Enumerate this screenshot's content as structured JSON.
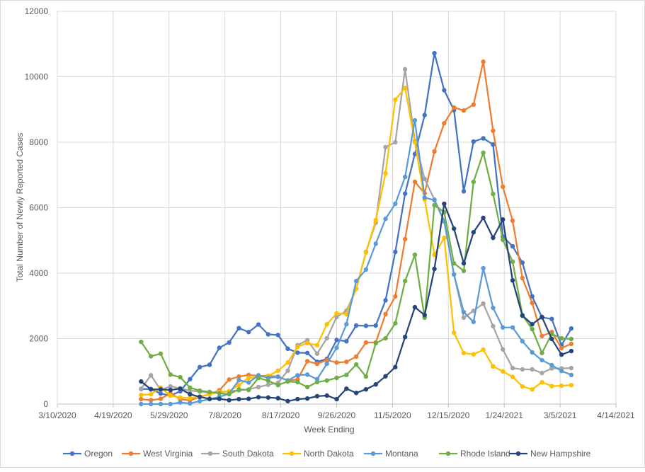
{
  "chart_data": {
    "type": "line",
    "title": "",
    "xlabel": "Week Ending",
    "ylabel": "Total Number of Newly Reported Cases",
    "ylim": [
      0,
      12000
    ],
    "yticks": [
      "0",
      "2000",
      "4000",
      "6000",
      "8000",
      "10000",
      "12000"
    ],
    "xlim": [
      "3/10/2020",
      "4/14/2021"
    ],
    "xticks": [
      "3/10/2020",
      "4/19/2020",
      "5/29/2020",
      "7/8/2020",
      "8/17/2020",
      "9/26/2020",
      "11/5/2020",
      "12/15/2020",
      "1/24/2021",
      "3/5/2021",
      "4/14/2021"
    ],
    "grid": true,
    "legend_position": "bottom",
    "x": [
      "5/9/2020",
      "5/16/2020",
      "5/23/2020",
      "5/30/2020",
      "6/6/2020",
      "6/13/2020",
      "6/20/2020",
      "6/27/2020",
      "7/4/2020",
      "7/11/2020",
      "7/18/2020",
      "7/25/2020",
      "8/1/2020",
      "8/8/2020",
      "8/15/2020",
      "8/22/2020",
      "8/29/2020",
      "9/5/2020",
      "9/12/2020",
      "9/19/2020",
      "9/26/2020",
      "10/3/2020",
      "10/10/2020",
      "10/17/2020",
      "10/24/2020",
      "10/31/2020",
      "11/7/2020",
      "11/14/2020",
      "11/21/2020",
      "11/28/2020",
      "12/5/2020",
      "12/12/2020",
      "12/19/2020",
      "12/26/2020",
      "1/2/2021",
      "1/9/2021",
      "1/16/2021",
      "1/23/2021",
      "1/30/2021",
      "2/6/2021",
      "2/13/2021",
      "2/20/2021",
      "2/27/2021",
      "3/6/2021",
      "3/13/2021"
    ],
    "series": [
      {
        "name": "Oregon",
        "color": "#4472C4",
        "values": [
          460,
          460,
          320,
          260,
          390,
          760,
          1130,
          1200,
          1720,
          1880,
          2320,
          2200,
          2430,
          2130,
          2110,
          1690,
          1570,
          1560,
          1290,
          1380,
          1960,
          1920,
          2400,
          2390,
          2400,
          3170,
          4650,
          6430,
          7640,
          8830,
          10720,
          9590,
          8980,
          6500,
          8020,
          8120,
          7930,
          5120,
          4820,
          4320,
          3290,
          2650,
          2600,
          1800,
          2310
        ]
      },
      {
        "name": "West Virginia",
        "color": "#ED7D31",
        "values": [
          150,
          120,
          160,
          330,
          150,
          110,
          220,
          300,
          420,
          750,
          840,
          890,
          860,
          860,
          840,
          720,
          750,
          1310,
          1230,
          1340,
          1270,
          1290,
          1450,
          1880,
          1880,
          2750,
          3290,
          5040,
          6790,
          6440,
          7720,
          8580,
          9060,
          8970,
          9150,
          10460,
          8350,
          6640,
          5600,
          3850,
          3090,
          2080,
          2200,
          1710,
          1840
        ]
      },
      {
        "name": "South Dakota",
        "color": "#A5A5A5",
        "values": [
          470,
          880,
          430,
          540,
          480,
          410,
          380,
          340,
          360,
          390,
          420,
          450,
          520,
          590,
          650,
          1020,
          1800,
          1950,
          1540,
          2010,
          2660,
          2850,
          3520,
          4650,
          5540,
          7850,
          8000,
          10230,
          8040,
          6880,
          6250,
          5600,
          3960,
          2640,
          2850,
          3070,
          2380,
          1670,
          1100,
          1060,
          1060,
          950,
          1090,
          1090,
          1100
        ]
      },
      {
        "name": "North Dakota",
        "color": "#FFC000",
        "values": [
          280,
          300,
          500,
          260,
          200,
          180,
          230,
          300,
          370,
          390,
          580,
          800,
          820,
          860,
          1020,
          1270,
          1750,
          1860,
          1800,
          2440,
          2770,
          2750,
          3520,
          4630,
          5620,
          7050,
          9300,
          9660,
          8000,
          6250,
          4560,
          5080,
          2180,
          1560,
          1520,
          1660,
          1150,
          1000,
          830,
          540,
          450,
          670,
          550,
          560,
          580
        ]
      },
      {
        "name": "Montana",
        "color": "#5B9BD5",
        "values": [
          0,
          0,
          0,
          0,
          50,
          20,
          90,
          150,
          220,
          320,
          730,
          660,
          880,
          800,
          830,
          720,
          880,
          900,
          760,
          1230,
          1720,
          2440,
          3760,
          4110,
          4900,
          5660,
          6120,
          6940,
          8670,
          6310,
          6230,
          5580,
          3960,
          2810,
          2510,
          4150,
          2940,
          2340,
          2340,
          1920,
          1580,
          1340,
          1190,
          1010,
          890
        ]
      },
      {
        "name": "Rhode Island",
        "color": "#70AD47",
        "values": [
          1900,
          1460,
          1540,
          900,
          820,
          500,
          410,
          370,
          330,
          300,
          450,
          430,
          800,
          710,
          580,
          690,
          670,
          520,
          670,
          720,
          800,
          890,
          1210,
          840,
          1860,
          2010,
          2470,
          3760,
          4560,
          2640,
          6080,
          5860,
          4300,
          4070,
          6790,
          7680,
          6420,
          5020,
          4350,
          2720,
          2290,
          1560,
          2140,
          2010,
          1990
        ]
      },
      {
        "name": "New Hampshire",
        "color": "#264478",
        "values": [
          690,
          450,
          450,
          430,
          470,
          300,
          220,
          160,
          160,
          120,
          150,
          160,
          210,
          200,
          180,
          90,
          150,
          170,
          240,
          260,
          150,
          470,
          340,
          450,
          600,
          850,
          1130,
          2050,
          2960,
          2720,
          4130,
          6120,
          5360,
          4300,
          5250,
          5690,
          5080,
          5640,
          3780,
          2700,
          2440,
          2660,
          1990,
          1510,
          1620
        ]
      }
    ]
  }
}
